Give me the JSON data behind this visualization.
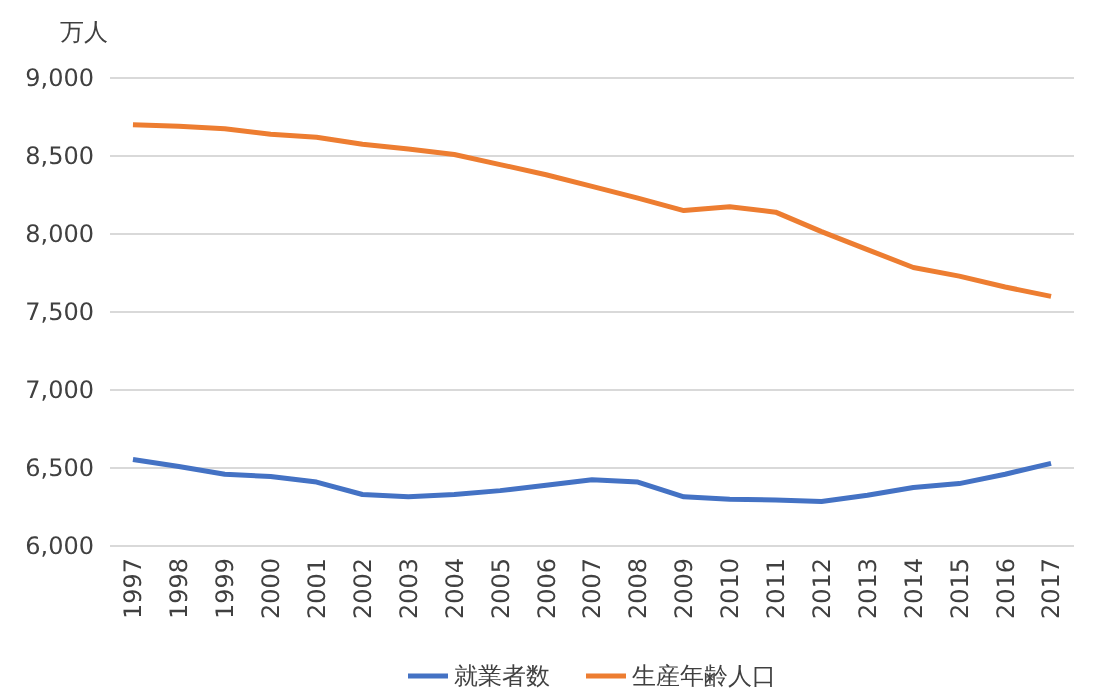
{
  "chart_data": {
    "type": "line",
    "ylabel": "万人",
    "categories": [
      "1997",
      "1998",
      "1999",
      "2000",
      "2001",
      "2002",
      "2003",
      "2004",
      "2005",
      "2006",
      "2007",
      "2008",
      "2009",
      "2010",
      "2011",
      "2012",
      "2013",
      "2014",
      "2015",
      "2016",
      "2017"
    ],
    "series": [
      {
        "name": "就業者数",
        "color": "#4472c4",
        "values": [
          6555,
          6510,
          6460,
          6445,
          6410,
          6330,
          6315,
          6330,
          6355,
          6390,
          6425,
          6410,
          6315,
          6300,
          6295,
          6285,
          6325,
          6375,
          6400,
          6460,
          6530
        ]
      },
      {
        "name": "生産年齢人口",
        "color": "#ed7d31",
        "values": [
          8700,
          8690,
          8675,
          8640,
          8620,
          8575,
          8545,
          8510,
          8445,
          8380,
          8305,
          8230,
          8150,
          8175,
          8140,
          8015,
          7900,
          7785,
          7730,
          7660,
          7600
        ]
      }
    ],
    "ylim": [
      6000,
      9000
    ],
    "yticks": [
      {
        "value": 6000,
        "label": "6,000"
      },
      {
        "value": 6500,
        "label": "6,500"
      },
      {
        "value": 7000,
        "label": "7,000"
      },
      {
        "value": 7500,
        "label": "7,500"
      },
      {
        "value": 8000,
        "label": "8,000"
      },
      {
        "value": 8500,
        "label": "8,500"
      },
      {
        "value": 9000,
        "label": "9,000"
      }
    ],
    "grid": "y",
    "legend": "bottom",
    "marker": "none",
    "line_style": "solid"
  }
}
